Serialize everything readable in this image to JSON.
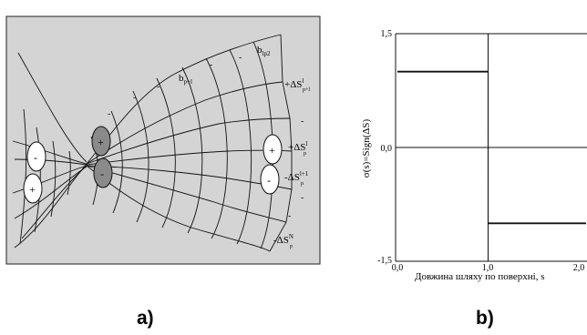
{
  "panel_a": {
    "label": "a)",
    "cell_labels": [
      {
        "base": "b",
        "sub": "lp2"
      },
      {
        "base": "b",
        "sub": "p+l"
      }
    ],
    "dashes": [
      "-",
      "-",
      "-",
      "-",
      "-",
      "-",
      "-",
      "-"
    ],
    "left_charges": [
      "-",
      "+"
    ],
    "middle_charges": [
      "+",
      "-"
    ],
    "right_charges": [
      "+",
      "-"
    ],
    "delta_labels": [
      {
        "sign": "+",
        "text": "ΔS",
        "sup": "l",
        "sub": "p+l"
      },
      {
        "sign": "+",
        "text": "ΔS",
        "sup": "l",
        "sub": "p"
      },
      {
        "sign": "-",
        "text": "ΔS",
        "sup": "l+1",
        "sub": "p"
      },
      {
        "sign": "-",
        "text": "ΔS",
        "sup": "N",
        "sub": "p"
      }
    ]
  },
  "panel_b": {
    "label": "b)",
    "chart_data": {
      "type": "line",
      "title": "",
      "ylabel": "σ(s)=Sign(ΔS)",
      "xlabel": "Довжина шляху по поверхні, s",
      "ylim": [
        -1.5,
        1.5
      ],
      "xlim": [
        0.0,
        2.1
      ],
      "yticks": [
        "1,5",
        "0,0",
        "-1,5"
      ],
      "xticks": [
        "0,0",
        "1,0",
        "2,0"
      ],
      "series": [
        {
          "x": [
            0.0,
            1.0
          ],
          "y": [
            1.0,
            1.0
          ]
        },
        {
          "x": [
            1.0,
            2.1
          ],
          "y": [
            -1.0,
            -1.0
          ]
        }
      ]
    }
  }
}
